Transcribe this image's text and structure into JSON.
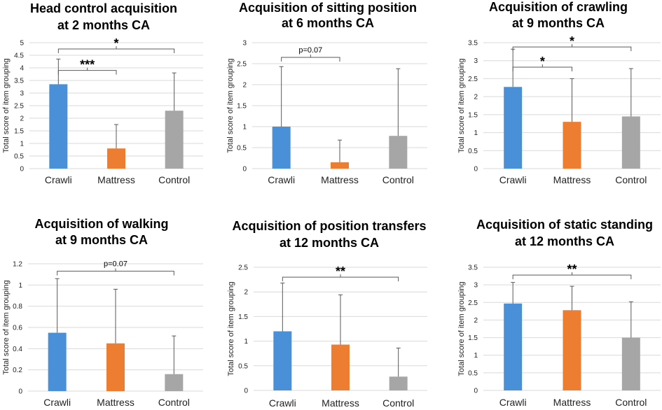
{
  "figure": {
    "background": "#ffffff"
  },
  "colors": {
    "Crawli": "#4a90d9",
    "Mattress": "#ed7d31",
    "Control": "#a6a6a6"
  },
  "chart_data": [
    {
      "type": "bar",
      "title": [
        "Head control acquisition",
        "at 2 months CA"
      ],
      "ylabel": "Total score of item grouping",
      "categories": [
        "Crawli",
        "Mattress",
        "Control"
      ],
      "values": [
        3.35,
        0.8,
        2.3
      ],
      "errors": [
        1.0,
        0.95,
        1.5
      ],
      "ylim": [
        0,
        5
      ],
      "yticks": [
        0,
        0.5,
        1,
        1.5,
        2,
        2.5,
        3,
        3.5,
        4,
        4.5,
        5
      ],
      "ytick_labels": [
        "0",
        "0.5",
        "1",
        "1.5",
        "2",
        "2.5",
        "3",
        "3.5",
        "4",
        "4.5",
        "5"
      ],
      "significance": [
        {
          "from": 0,
          "to": 2,
          "label": "*",
          "y": 4.75
        },
        {
          "from": 0,
          "to": 1,
          "label": "***",
          "y": 3.9
        }
      ]
    },
    {
      "type": "bar",
      "title": [
        "Acquisition of sitting position",
        "at 6 months CA"
      ],
      "ylabel": "Total score of item grouping",
      "categories": [
        "Crawli",
        "Mattress",
        "Control"
      ],
      "values": [
        1.0,
        0.15,
        0.78
      ],
      "errors": [
        1.43,
        0.53,
        1.6
      ],
      "ylim": [
        0,
        3
      ],
      "yticks": [
        0,
        0.5,
        1,
        1.5,
        2,
        2.5,
        3
      ],
      "ytick_labels": [
        "0",
        "0.5",
        "1",
        "1.5",
        "2",
        "2.5",
        "3"
      ],
      "significance": [
        {
          "from": 0,
          "to": 1,
          "label": "p=0.07",
          "y": 2.65
        }
      ]
    },
    {
      "type": "bar",
      "title": [
        "Acquisition of crawling",
        "at 9 months CA"
      ],
      "ylabel": "Total score of item grouping",
      "categories": [
        "Crawli",
        "Mattress",
        "Control"
      ],
      "values": [
        2.27,
        1.3,
        1.45
      ],
      "errors": [
        1.05,
        1.2,
        1.33
      ],
      "ylim": [
        0,
        3.5
      ],
      "yticks": [
        0,
        0.5,
        1,
        1.5,
        2,
        2.5,
        3,
        3.5
      ],
      "ytick_labels": [
        "0",
        "0.5",
        "1",
        "1.5",
        "2",
        "2.5",
        "3",
        "3.5"
      ],
      "significance": [
        {
          "from": 0,
          "to": 2,
          "label": "*",
          "y": 3.38
        },
        {
          "from": 0,
          "to": 1,
          "label": "*",
          "y": 2.82
        }
      ]
    },
    {
      "type": "bar",
      "title": [
        "Acquisition of walking",
        "at 9 months CA"
      ],
      "ylabel": "Total score of item grouping",
      "categories": [
        "Crawli",
        "Mattress",
        "Control"
      ],
      "values": [
        0.55,
        0.45,
        0.16
      ],
      "errors": [
        0.51,
        0.51,
        0.36
      ],
      "ylim": [
        0,
        1.2
      ],
      "yticks": [
        0,
        0.2,
        0.4,
        0.6,
        0.8,
        1,
        1.2
      ],
      "ytick_labels": [
        "0",
        "0.2",
        "0.4",
        "0.6",
        "0.8",
        "1",
        "1.2"
      ],
      "significance": [
        {
          "from": 0,
          "to": 2,
          "label": "p=0.07",
          "y": 1.13
        }
      ]
    },
    {
      "type": "bar",
      "title": [
        "Acquisition of position transfers",
        "at 12 months CA"
      ],
      "ylabel": "Total score of item grouping",
      "categories": [
        "Crawli",
        "Mattress",
        "Control"
      ],
      "values": [
        1.2,
        0.93,
        0.28
      ],
      "errors": [
        0.98,
        1.01,
        0.58
      ],
      "ylim": [
        0,
        2.5
      ],
      "yticks": [
        0,
        0.5,
        1,
        1.5,
        2,
        2.5
      ],
      "ytick_labels": [
        "0",
        "0.5",
        "1",
        "1.5",
        "2",
        "2.5"
      ],
      "significance": [
        {
          "from": 0,
          "to": 2,
          "label": "**",
          "y": 2.3
        }
      ]
    },
    {
      "type": "bar",
      "title": [
        "Acquisition of static standing",
        "at 12 months CA"
      ],
      "ylabel": "Total score of item grouping",
      "categories": [
        "Crawli",
        "Mattress",
        "Control"
      ],
      "values": [
        2.47,
        2.28,
        1.5
      ],
      "errors": [
        0.6,
        0.68,
        1.02
      ],
      "ylim": [
        0,
        3.5
      ],
      "yticks": [
        0,
        0.5,
        1,
        1.5,
        2,
        2.5,
        3,
        3.5
      ],
      "ytick_labels": [
        "0",
        "0.5",
        "1",
        "1.5",
        "2",
        "2.5",
        "3",
        "3.5"
      ],
      "significance": [
        {
          "from": 0,
          "to": 2,
          "label": "**",
          "y": 3.28
        }
      ]
    }
  ]
}
